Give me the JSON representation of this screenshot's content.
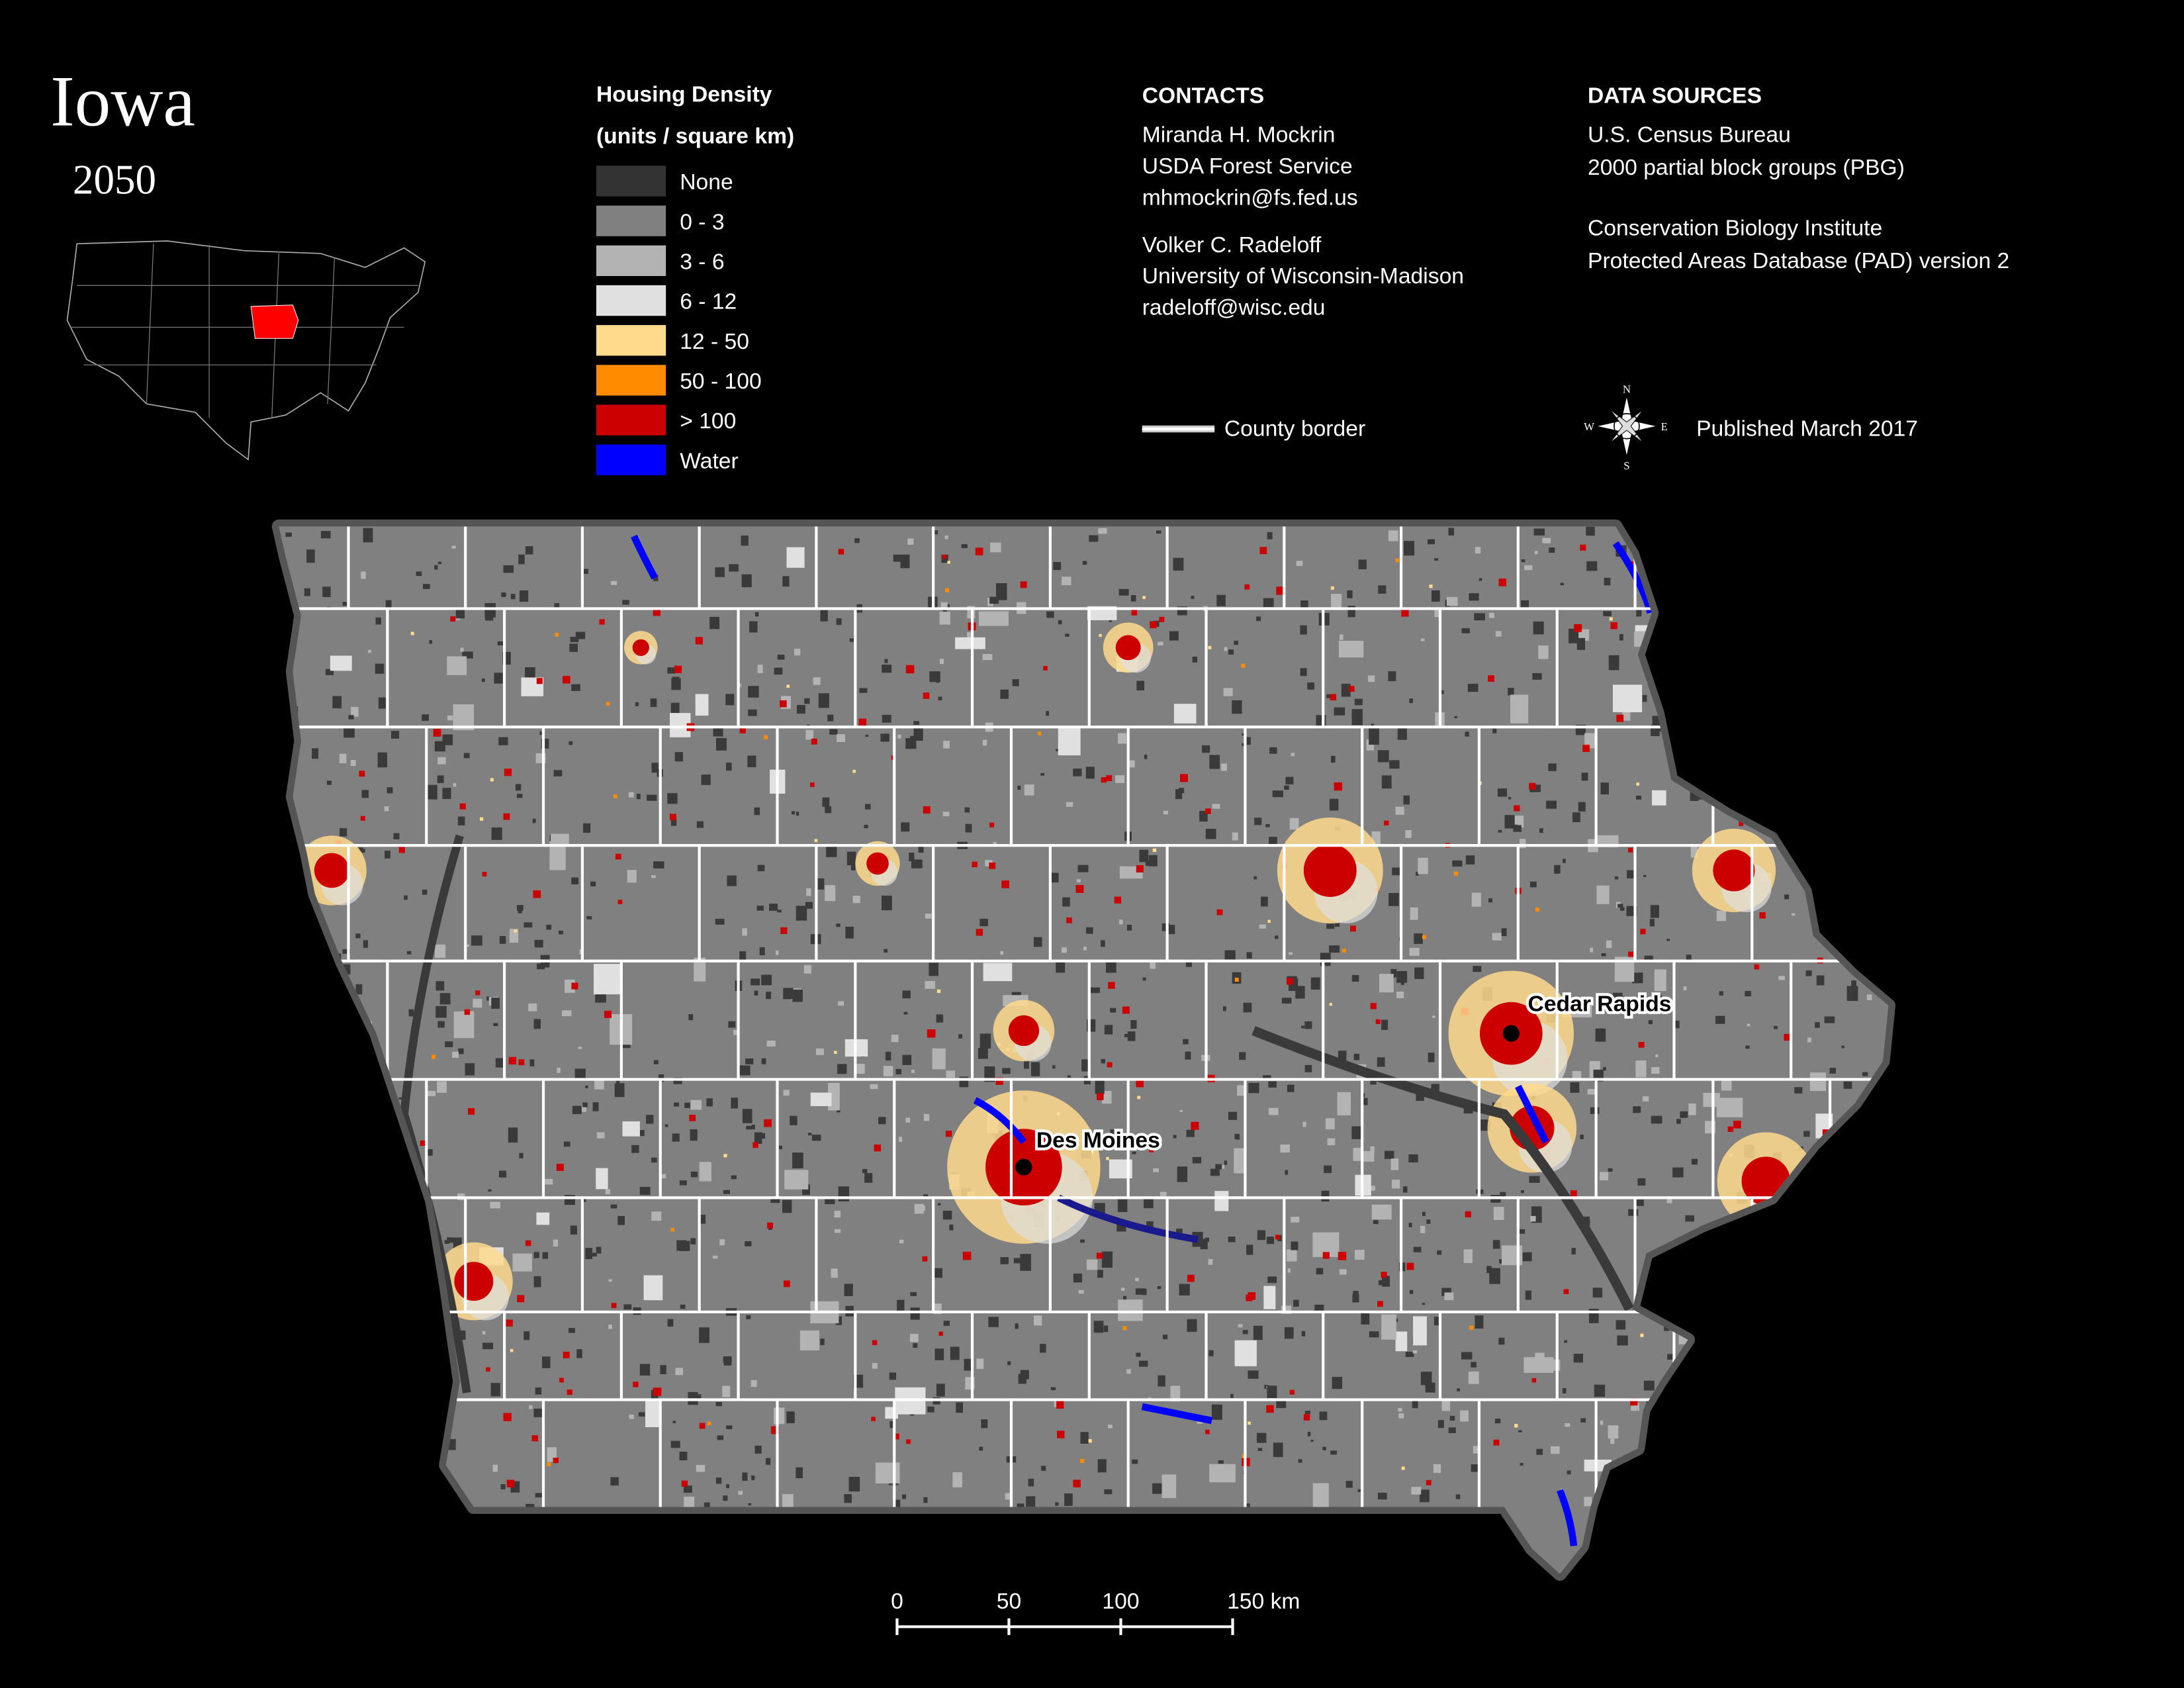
{
  "header": {
    "title": "Iowa",
    "subtitle": "2050"
  },
  "legend": {
    "title": "Housing Density",
    "subtitle": "(units / square km)",
    "items": [
      {
        "label": "None",
        "color": "#333333"
      },
      {
        "label": "0 - 3",
        "color": "#808080"
      },
      {
        "label": "3 - 6",
        "color": "#b3b3b3"
      },
      {
        "label": "6 - 12",
        "color": "#e0e0e0"
      },
      {
        "label": "12 - 50",
        "color": "#ffd98c"
      },
      {
        "label": "50 - 100",
        "color": "#ff8c00"
      },
      {
        "label": "> 100",
        "color": "#cc0000"
      },
      {
        "label": "Water",
        "color": "#0000ff"
      }
    ]
  },
  "contacts": {
    "title": "CONTACTS",
    "people": [
      [
        "Miranda H. Mockrin",
        "USDA Forest Service",
        "mhmockrin@fs.fed.us"
      ],
      [
        "Volker C. Radeloff",
        "University of Wisconsin-Madison",
        "radeloff@wisc.edu"
      ]
    ]
  },
  "data_sources": {
    "title": "DATA SOURCES",
    "groups": [
      [
        "U.S. Census Bureau",
        "2000 partial block groups (PBG)"
      ],
      [
        "Conservation Biology Institute",
        "Protected Areas Database (PAD) version 2"
      ]
    ]
  },
  "county_border": "County border",
  "published": "Published March 2017",
  "compass": {
    "n": "N",
    "e": "E",
    "s": "S",
    "w": "W"
  },
  "scale_bar": {
    "ticks": [
      0,
      50,
      100,
      {
        "value": 150,
        "label": "150 km"
      }
    ]
  },
  "cities": [
    {
      "name": "Des Moines"
    },
    {
      "name": "Cedar Rapids"
    }
  ]
}
